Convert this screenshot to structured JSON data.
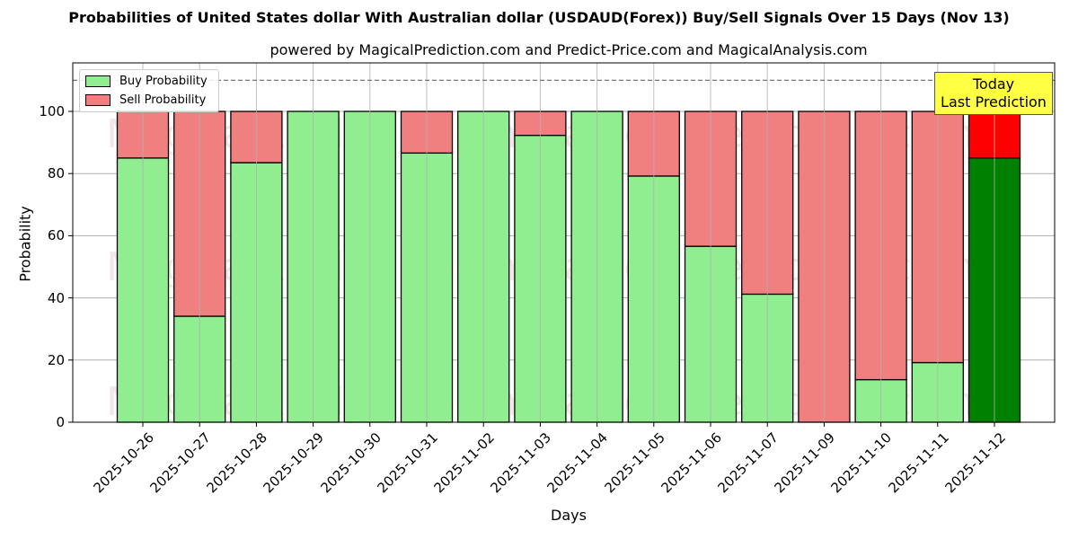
{
  "title": "Probabilities of United States dollar With Australian dollar (USDAUD(Forex)) Buy/Sell Signals Over 15 Days (Nov 13)",
  "subtitle": "powered by MagicalPrediction.com and Predict-Price.com and MagicalAnalysis.com",
  "xlabel": "Days",
  "ylabel": "Probability",
  "legend": {
    "buy": "Buy Probability",
    "sell": "Sell Probability"
  },
  "annotation": {
    "line1": "Today",
    "line2": "Last Prediction"
  },
  "watermarks": [
    "MagicalAnalysis.com",
    "MagicalPrediction.com"
  ],
  "colors": {
    "buy": "#90ee90",
    "sell": "#f08080",
    "today_buy": "#008000",
    "today_sell": "#ff0000",
    "annotation_bg": "#ffff44"
  },
  "chart_data": {
    "type": "bar",
    "stacked": true,
    "title": "Probabilities of United States dollar With Australian dollar (USDAUD(Forex)) Buy/Sell Signals Over 15 Days (Nov 13)",
    "subtitle": "powered by MagicalPrediction.com and Predict-Price.com and MagicalAnalysis.com",
    "xlabel": "Days",
    "ylabel": "Probability",
    "ylim": [
      0,
      115
    ],
    "yticks": [
      0,
      20,
      40,
      60,
      80,
      100
    ],
    "grid": true,
    "legend_position": "upper left",
    "reference_line": {
      "y": 110,
      "style": "dashed"
    },
    "categories": [
      "2025-10-26",
      "2025-10-27",
      "2025-10-28",
      "2025-10-29",
      "2025-10-30",
      "2025-10-31",
      "2025-11-02",
      "2025-11-03",
      "2025-11-04",
      "2025-11-05",
      "2025-11-06",
      "2025-11-07",
      "2025-11-09",
      "2025-11-10",
      "2025-11-11",
      "2025-11-12"
    ],
    "series": [
      {
        "name": "Buy Probability",
        "values": [
          85.0,
          34.1,
          83.5,
          100,
          100,
          86.6,
          100,
          92.3,
          100,
          79.2,
          56.6,
          41.2,
          0,
          13.7,
          19.2,
          85.0
        ]
      },
      {
        "name": "Sell Probability",
        "values": [
          15.0,
          65.9,
          16.5,
          0,
          0,
          13.4,
          0,
          7.7,
          0,
          20.8,
          43.4,
          58.8,
          100,
          86.3,
          80.8,
          15.0
        ]
      }
    ]
  }
}
